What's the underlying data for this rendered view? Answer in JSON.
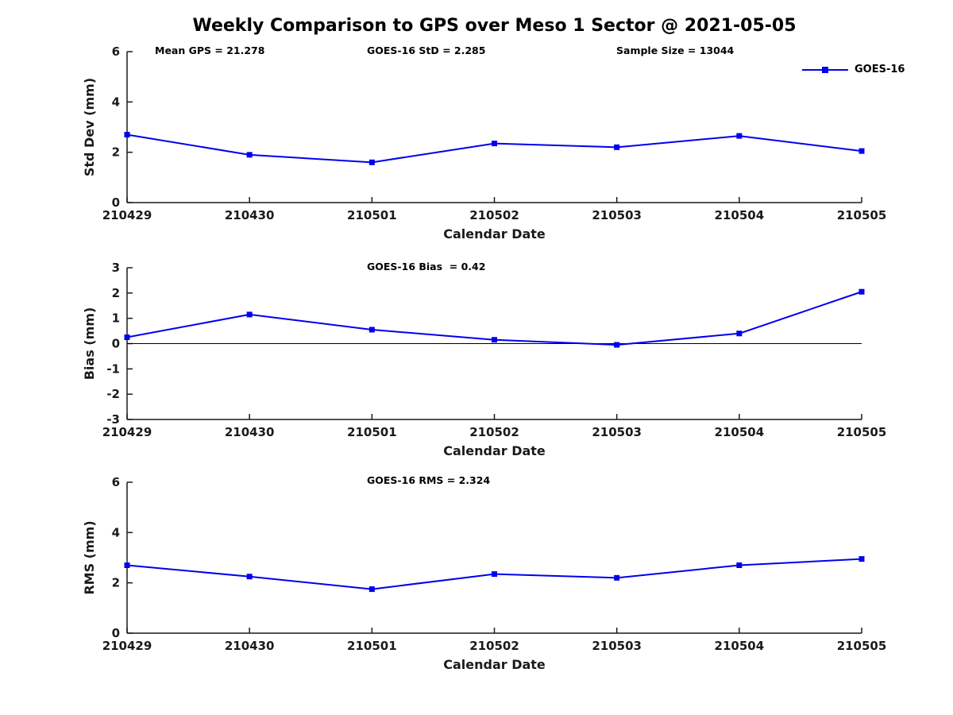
{
  "title": "Weekly Comparison to GPS over Meso 1 Sector @ 2021-05-05",
  "legend": {
    "label": "GOES-16",
    "color": "#0000EE"
  },
  "stats": {
    "mean_gps": "Mean GPS = 21.278",
    "goes_std": "GOES-16 StD = 2.285",
    "sample_size": "Sample Size = 13044",
    "goes_bias": "GOES-16 Bias  = 0.42",
    "goes_rms": "GOES-16 RMS = 2.324"
  },
  "chart_data": [
    {
      "type": "line",
      "name": "std-dev",
      "ylabel": "Std Dev (mm)",
      "xlabel": "Calendar Date",
      "categories": [
        "210429",
        "210430",
        "210501",
        "210502",
        "210503",
        "210504",
        "210505"
      ],
      "series": [
        {
          "name": "GOES-16",
          "values": [
            2.7,
            1.9,
            1.6,
            2.35,
            2.2,
            2.65,
            2.05
          ]
        }
      ],
      "ylim": [
        0,
        6
      ],
      "yticks": [
        0,
        2,
        4,
        6
      ],
      "grid": false,
      "zero_line": false,
      "marker": "square",
      "color": "#0000EE",
      "legend_position": "top-right"
    },
    {
      "type": "line",
      "name": "bias",
      "ylabel": "Bias (mm)",
      "xlabel": "Calendar Date",
      "categories": [
        "210429",
        "210430",
        "210501",
        "210502",
        "210503",
        "210504",
        "210505"
      ],
      "series": [
        {
          "name": "GOES-16",
          "values": [
            0.25,
            1.15,
            0.55,
            0.15,
            -0.05,
            0.4,
            2.05
          ]
        }
      ],
      "ylim": [
        -3,
        3
      ],
      "yticks": [
        -3,
        -2,
        -1,
        0,
        1,
        2,
        3
      ],
      "grid": false,
      "zero_line": true,
      "marker": "square",
      "color": "#0000EE"
    },
    {
      "type": "line",
      "name": "rms",
      "ylabel": "RMS (mm)",
      "xlabel": "Calendar Date",
      "categories": [
        "210429",
        "210430",
        "210501",
        "210502",
        "210503",
        "210504",
        "210505"
      ],
      "series": [
        {
          "name": "GOES-16",
          "values": [
            2.7,
            2.25,
            1.75,
            2.35,
            2.2,
            2.7,
            2.95
          ]
        }
      ],
      "ylim": [
        0,
        6
      ],
      "yticks": [
        0,
        2,
        4,
        6
      ],
      "grid": false,
      "zero_line": false,
      "marker": "square",
      "color": "#0000EE"
    }
  ]
}
